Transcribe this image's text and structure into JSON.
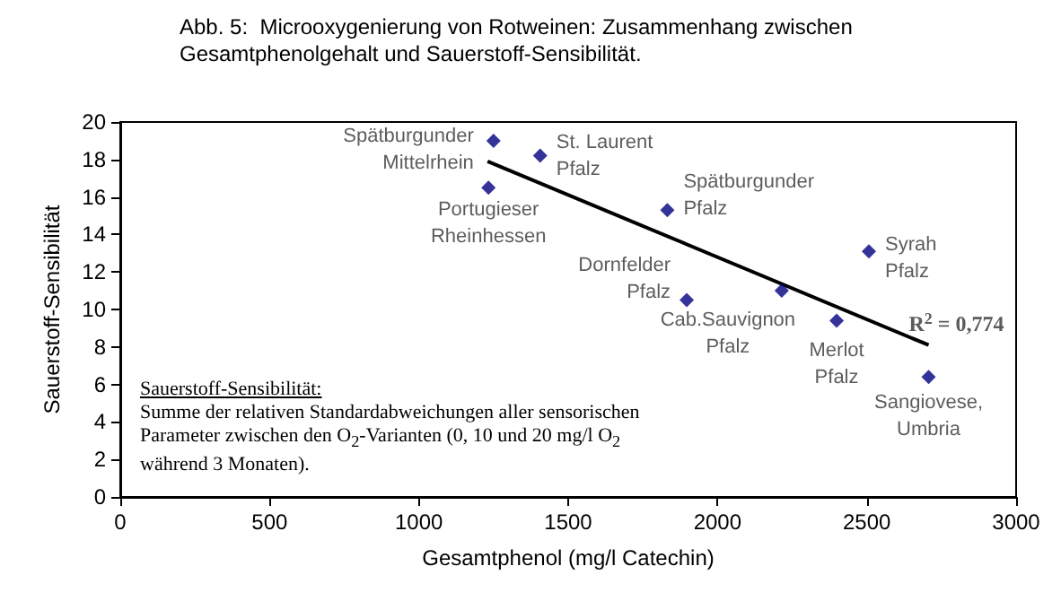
{
  "chart_data": {
    "type": "scatter",
    "title": "Abb. 5:  Microoxygenierung von Rotweinen: Zusammenhang zwischen\nGesamtphenolgehalt und Sauerstoff-Sensibilität.",
    "xlabel": "Gesamtphenol (mg/l Catechin)",
    "ylabel": "Sauerstoff-Sensibilität",
    "x": [
      1250,
      1233,
      1406,
      1832,
      2507,
      1897,
      2215,
      2399,
      2707
    ],
    "series": [
      {
        "color": "#000080",
        "values": [
          19.0,
          16.5,
          18.2,
          15.3,
          13.1,
          10.5,
          11.0,
          9.4,
          6.4
        ],
        "marker": "diamond"
      },
      {
        "type": "line",
        "color": "#000000",
        "x": [
          1230,
          2707
        ],
        "values": [
          17.9,
          8.1
        ],
        "marker": "none"
      }
    ],
    "annotations": [
      {
        "text": "Spätburgunder\nMittelrhein",
        "x": 1250,
        "y": 19.0
      },
      {
        "text": "Portugieser\nRheinhessen",
        "x": 1233,
        "y": 16.5
      },
      {
        "text": "St. Laurent\nPfalz",
        "x": 1406,
        "y": 18.2
      },
      {
        "text": "Spätburgunder\nPfalz",
        "x": 1832,
        "y": 15.3
      },
      {
        "text": "Syrah\nPfalz",
        "x": 2507,
        "y": 13.1
      },
      {
        "text": "Dornfelder\nPfalz",
        "x": 1897,
        "y": 10.5
      },
      {
        "text": "Cab.Sauvignon\nPfalz",
        "x": 2215,
        "y": 11.0
      },
      {
        "text": "Merlot\nPfalz",
        "x": 2399,
        "y": 9.4
      },
      {
        "text": "Sangiovese,\nUmbria",
        "x": 2707,
        "y": 6.4
      },
      {
        "text": "R$^{2}$ = 0,774",
        "x": 2707,
        "y": 8.1
      },
      "Sauerstoff-Sensibilität:",
      "Summe der relativen Standardabweichungen aller sensorischen Parameter zwischen den O$_{2}$-Varianten (0, 10 und 20 mg/l O$_{2}$ während 3 Monaten)."
    ],
    "xlim": [
      0,
      3000
    ],
    "xticks": [
      0,
      500,
      1000,
      1500,
      2000,
      2500,
      3000
    ],
    "ylim": [
      0,
      20
    ],
    "yticks": [
      0,
      2,
      4,
      6,
      8,
      10,
      12,
      14,
      16,
      18,
      20
    ],
    "grid": false
  }
}
